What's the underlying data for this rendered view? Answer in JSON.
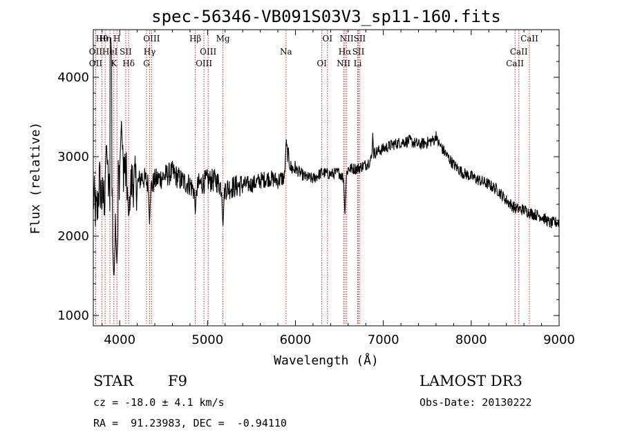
{
  "chart_data": {
    "type": "line",
    "title": "spec-56346-VB091S03V3_sp11-160.fits",
    "xlabel": "Wavelength (Å)",
    "ylabel": "Flux (relative)",
    "xlim": [
      3700,
      9000
    ],
    "ylim": [
      870,
      4600
    ],
    "x_ticks": [
      4000,
      5000,
      6000,
      7000,
      8000,
      9000
    ],
    "y_ticks": [
      1000,
      2000,
      3000,
      4000
    ],
    "x_tick_labels": [
      "4000",
      "5000",
      "6000",
      "7000",
      "8000",
      "9000"
    ],
    "y_tick_labels": [
      "1000",
      "2000",
      "3000",
      "4000"
    ],
    "series": [
      {
        "name": "flux",
        "anchors": [
          [
            3700,
            2500
          ],
          [
            3740,
            2250
          ],
          [
            3770,
            2700
          ],
          [
            3800,
            2450
          ],
          [
            3830,
            2500
          ],
          [
            3860,
            2750
          ],
          [
            3880,
            2550
          ],
          [
            3920,
            2700
          ],
          [
            3960,
            2600
          ],
          [
            4000,
            2800
          ],
          [
            4050,
            2900
          ],
          [
            4100,
            2550
          ],
          [
            4150,
            2700
          ],
          [
            4200,
            2650
          ],
          [
            4250,
            2750
          ],
          [
            4300,
            2700
          ],
          [
            4350,
            2600
          ],
          [
            4400,
            2700
          ],
          [
            4500,
            2750
          ],
          [
            4600,
            2800
          ],
          [
            4700,
            2700
          ],
          [
            4800,
            2650
          ],
          [
            4860,
            2550
          ],
          [
            4900,
            2650
          ],
          [
            5000,
            2700
          ],
          [
            5100,
            2700
          ],
          [
            5170,
            2600
          ],
          [
            5200,
            2600
          ],
          [
            5300,
            2620
          ],
          [
            5400,
            2650
          ],
          [
            5500,
            2650
          ],
          [
            5600,
            2700
          ],
          [
            5700,
            2730
          ],
          [
            5800,
            2700
          ],
          [
            5890,
            2750
          ],
          [
            5900,
            3100
          ],
          [
            5950,
            2850
          ],
          [
            6000,
            2850
          ],
          [
            6100,
            2750
          ],
          [
            6200,
            2720
          ],
          [
            6300,
            2800
          ],
          [
            6400,
            2780
          ],
          [
            6500,
            2800
          ],
          [
            6560,
            2700
          ],
          [
            6600,
            2850
          ],
          [
            6700,
            2850
          ],
          [
            6800,
            2900
          ],
          [
            6850,
            2950
          ],
          [
            6900,
            3050
          ],
          [
            7000,
            3100
          ],
          [
            7100,
            3150
          ],
          [
            7200,
            3180
          ],
          [
            7300,
            3200
          ],
          [
            7400,
            3150
          ],
          [
            7500,
            3180
          ],
          [
            7600,
            3220
          ],
          [
            7700,
            3050
          ],
          [
            7800,
            2900
          ],
          [
            7900,
            2800
          ],
          [
            8000,
            2750
          ],
          [
            8100,
            2700
          ],
          [
            8200,
            2650
          ],
          [
            8300,
            2580
          ],
          [
            8400,
            2450
          ],
          [
            8500,
            2350
          ],
          [
            8600,
            2330
          ],
          [
            8700,
            2280
          ],
          [
            8800,
            2250
          ],
          [
            8900,
            2160
          ],
          [
            9000,
            2180
          ]
        ],
        "absorption_features": [
          [
            3934,
            1450,
            5
          ],
          [
            3968,
            1650,
            5
          ],
          [
            4102,
            2200,
            5
          ],
          [
            4340,
            2150,
            6
          ],
          [
            4861,
            2250,
            7
          ],
          [
            5175,
            2100,
            8
          ],
          [
            6563,
            2250,
            6
          ]
        ],
        "emission_features": [
          [
            3900,
            4500,
            4
          ],
          [
            3850,
            3200,
            6
          ],
          [
            4020,
            3450,
            6
          ],
          [
            5895,
            3250,
            10
          ],
          [
            6880,
            3300,
            8
          ],
          [
            7600,
            3320,
            6
          ]
        ]
      }
    ],
    "line_markers": [
      {
        "label": "Hθ",
        "x": 3798
      },
      {
        "label": "OII",
        "x": 3727
      },
      {
        "label": "OII",
        "x": 3727
      },
      {
        "label": "Hη",
        "x": 3835
      },
      {
        "label": "HeI",
        "x": 3889
      },
      {
        "label": "K",
        "x": 3934
      },
      {
        "label": "H",
        "x": 3969
      },
      {
        "label": "SII",
        "x": 4069
      },
      {
        "label": "Hδ",
        "x": 4102
      },
      {
        "label": "OIII",
        "x": 4363
      },
      {
        "label": "Hγ",
        "x": 4341
      },
      {
        "label": "G",
        "x": 4305
      },
      {
        "label": "Hβ",
        "x": 4861
      },
      {
        "label": "OIII",
        "x": 5007
      },
      {
        "label": "OIII",
        "x": 4959
      },
      {
        "label": "Mg",
        "x": 5175
      },
      {
        "label": "Na",
        "x": 5893
      },
      {
        "label": "OI",
        "x": 6300
      },
      {
        "label": "OI",
        "x": 6364
      },
      {
        "label": "Hα",
        "x": 6563
      },
      {
        "label": "NII",
        "x": 6548
      },
      {
        "label": "NII",
        "x": 6583
      },
      {
        "label": "SII",
        "x": 6716
      },
      {
        "label": "Li",
        "x": 6708
      },
      {
        "label": "SII",
        "x": 6731
      },
      {
        "label": "CaII",
        "x": 8542
      },
      {
        "label": "CaII",
        "x": 8498
      },
      {
        "label": "CaII",
        "x": 8662
      }
    ]
  },
  "info": {
    "class": "STAR",
    "subclass": "F9",
    "survey": "LAMOST DR3",
    "redshift": "cz = -18.0 ± 4.1 km/s",
    "obs_date": "Obs-Date: 20130222",
    "coords": "RA =  91.23983, DEC =  -0.94110"
  }
}
